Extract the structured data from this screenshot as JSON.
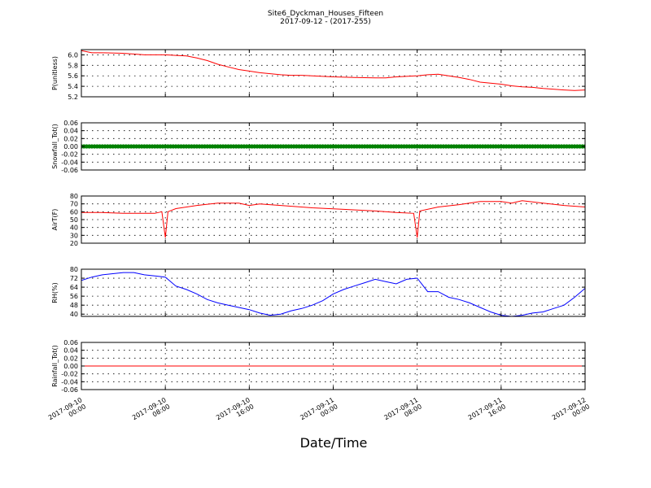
{
  "figure": {
    "title": "Site6_Dyckman_Houses_Fifteen",
    "subtitle": "2017-09-12 - (2017-255)",
    "xlabel": "Date/Time"
  },
  "x_axis": {
    "start": "2017-09-10 00:00",
    "end": "2017-09-12 00:00",
    "ticks": [
      {
        "t": "2017-09-10 00:00",
        "line1": "2017-09-10",
        "line2": "00:00"
      },
      {
        "t": "2017-09-10 08:00",
        "line1": "2017-09-10",
        "line2": "08:00"
      },
      {
        "t": "2017-09-10 16:00",
        "line1": "2017-09-10",
        "line2": "16:00"
      },
      {
        "t": "2017-09-11 00:00",
        "line1": "2017-09-11",
        "line2": "00:00"
      },
      {
        "t": "2017-09-11 08:00",
        "line1": "2017-09-11",
        "line2": "08:00"
      },
      {
        "t": "2017-09-11 16:00",
        "line1": "2017-09-11",
        "line2": "16:00"
      },
      {
        "t": "2017-09-12 00:00",
        "line1": "2017-09-12",
        "line2": "00:00"
      }
    ]
  },
  "chart_data": [
    {
      "type": "line",
      "ylabel": "P(unitless)",
      "ylim": [
        5.2,
        6.1
      ],
      "yticks": [
        5.2,
        5.4,
        5.6,
        5.8,
        6.0
      ],
      "tick_decimals": 1,
      "grid": true,
      "color": "#ff0000",
      "x": [
        "2017-09-10 00:00",
        "2017-09-10 01:00",
        "2017-09-10 02:00",
        "2017-09-10 04:00",
        "2017-09-10 06:00",
        "2017-09-10 08:00",
        "2017-09-10 09:00",
        "2017-09-10 10:00",
        "2017-09-10 11:00",
        "2017-09-10 12:00",
        "2017-09-10 13:00",
        "2017-09-10 14:00",
        "2017-09-10 15:00",
        "2017-09-10 16:00",
        "2017-09-10 17:00",
        "2017-09-10 18:00",
        "2017-09-10 19:00",
        "2017-09-10 20:00",
        "2017-09-10 21:00",
        "2017-09-10 22:00",
        "2017-09-11 00:00",
        "2017-09-11 02:00",
        "2017-09-11 04:00",
        "2017-09-11 05:00",
        "2017-09-11 06:00",
        "2017-09-11 08:00",
        "2017-09-11 09:00",
        "2017-09-11 10:00",
        "2017-09-11 11:00",
        "2017-09-11 12:00",
        "2017-09-11 13:00",
        "2017-09-11 14:00",
        "2017-09-11 16:00",
        "2017-09-11 17:00",
        "2017-09-11 18:00",
        "2017-09-11 19:00",
        "2017-09-11 20:00",
        "2017-09-11 22:00",
        "2017-09-11 23:00",
        "2017-09-12 00:00"
      ],
      "y": [
        6.08,
        6.04,
        6.04,
        6.03,
        6.0,
        6.0,
        5.99,
        5.98,
        5.94,
        5.89,
        5.82,
        5.77,
        5.72,
        5.69,
        5.66,
        5.64,
        5.62,
        5.61,
        5.61,
        5.6,
        5.58,
        5.57,
        5.56,
        5.56,
        5.58,
        5.6,
        5.62,
        5.63,
        5.6,
        5.57,
        5.53,
        5.48,
        5.44,
        5.41,
        5.39,
        5.38,
        5.36,
        5.33,
        5.32,
        5.33
      ]
    },
    {
      "type": "scatter",
      "ylabel": "Snowfall_Tot()",
      "ylim": [
        -0.06,
        0.06
      ],
      "yticks": [
        -0.06,
        -0.04,
        -0.02,
        0.0,
        0.02,
        0.04,
        0.06
      ],
      "tick_decimals": 2,
      "grid": true,
      "color": "#008000",
      "constant_value": 0.0,
      "marker_count": 193
    },
    {
      "type": "line",
      "ylabel": "AirT(F)",
      "ylim": [
        20,
        80
      ],
      "yticks": [
        20,
        30,
        40,
        50,
        60,
        70,
        80
      ],
      "tick_decimals": 0,
      "grid": true,
      "color": "#ff0000",
      "x": [
        "2017-09-10 00:00",
        "2017-09-10 02:00",
        "2017-09-10 04:00",
        "2017-09-10 06:00",
        "2017-09-10 07:00",
        "2017-09-10 07:40",
        "2017-09-10 08:00",
        "2017-09-10 08:15",
        "2017-09-10 09:00",
        "2017-09-10 11:00",
        "2017-09-10 13:00",
        "2017-09-10 15:00",
        "2017-09-10 16:00",
        "2017-09-10 17:00",
        "2017-09-10 19:00",
        "2017-09-10 22:00",
        "2017-09-11 01:00",
        "2017-09-11 04:00",
        "2017-09-11 06:00",
        "2017-09-11 07:40",
        "2017-09-11 08:00",
        "2017-09-11 08:15",
        "2017-09-11 10:00",
        "2017-09-11 12:00",
        "2017-09-11 14:00",
        "2017-09-11 16:00",
        "2017-09-11 17:00",
        "2017-09-11 18:00",
        "2017-09-11 20:00",
        "2017-09-11 22:00",
        "2017-09-12 00:00"
      ],
      "y": [
        59,
        59,
        58,
        58,
        58,
        60,
        27,
        60,
        64,
        68,
        71,
        71,
        68,
        70,
        68,
        65,
        63,
        61,
        59,
        58,
        27,
        61,
        66,
        69,
        73,
        73,
        71,
        74,
        71,
        68,
        66
      ]
    },
    {
      "type": "line",
      "ylabel": "RH(%)",
      "ylim": [
        38,
        80
      ],
      "yticks": [
        40,
        48,
        56,
        64,
        72,
        80
      ],
      "tick_decimals": 0,
      "grid": true,
      "color": "#0000ff",
      "x": [
        "2017-09-10 00:00",
        "2017-09-10 01:00",
        "2017-09-10 02:00",
        "2017-09-10 03:00",
        "2017-09-10 04:00",
        "2017-09-10 05:00",
        "2017-09-10 06:00",
        "2017-09-10 07:00",
        "2017-09-10 08:00",
        "2017-09-10 09:00",
        "2017-09-10 10:00",
        "2017-09-10 11:00",
        "2017-09-10 12:00",
        "2017-09-10 13:00",
        "2017-09-10 14:00",
        "2017-09-10 15:00",
        "2017-09-10 16:00",
        "2017-09-10 17:00",
        "2017-09-10 18:00",
        "2017-09-10 19:00",
        "2017-09-10 20:00",
        "2017-09-10 21:00",
        "2017-09-10 22:00",
        "2017-09-10 23:00",
        "2017-09-11 00:00",
        "2017-09-11 01:00",
        "2017-09-11 02:00",
        "2017-09-11 03:00",
        "2017-09-11 04:00",
        "2017-09-11 05:00",
        "2017-09-11 06:00",
        "2017-09-11 07:00",
        "2017-09-11 08:00",
        "2017-09-11 09:00",
        "2017-09-11 10:00",
        "2017-09-11 11:00",
        "2017-09-11 12:00",
        "2017-09-11 13:00",
        "2017-09-11 14:00",
        "2017-09-11 15:00",
        "2017-09-11 16:00",
        "2017-09-11 17:00",
        "2017-09-11 18:00",
        "2017-09-11 19:00",
        "2017-09-11 20:00",
        "2017-09-11 21:00",
        "2017-09-11 22:00",
        "2017-09-11 23:00",
        "2017-09-12 00:00"
      ],
      "y": [
        70,
        73,
        75,
        76,
        77,
        77,
        75,
        74,
        73,
        65,
        62,
        58,
        53,
        50,
        48,
        46,
        44,
        41,
        39,
        40,
        43,
        45,
        48,
        52,
        58,
        62,
        65,
        68,
        71,
        69,
        67,
        71,
        72,
        60,
        60,
        55,
        53,
        50,
        46,
        42,
        39,
        38,
        39,
        41,
        42,
        45,
        48,
        55,
        63
      ]
    },
    {
      "type": "line",
      "ylabel": "Rainfall_Tot()",
      "ylim": [
        -0.06,
        0.06
      ],
      "yticks": [
        -0.06,
        -0.04,
        -0.02,
        0.0,
        0.02,
        0.04,
        0.06
      ],
      "tick_decimals": 2,
      "grid": true,
      "color": "#ff0000",
      "x": [
        "2017-09-10 00:00",
        "2017-09-12 00:00"
      ],
      "y": [
        0.0,
        0.0
      ]
    }
  ]
}
